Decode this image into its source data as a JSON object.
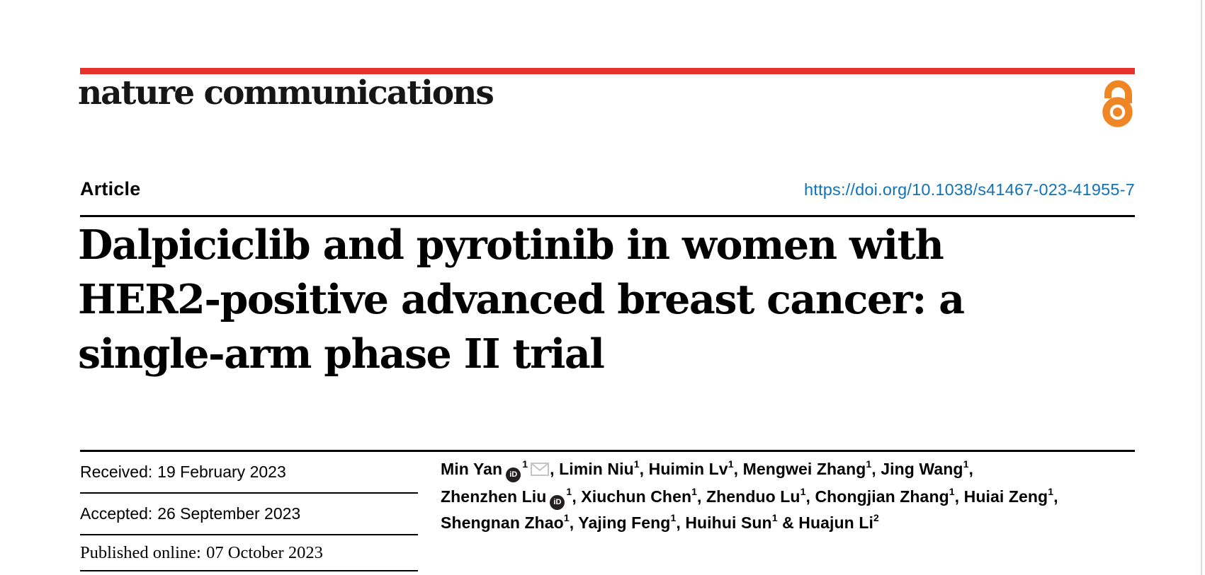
{
  "journal": {
    "wordmark": "nature communications",
    "open_access_icon": "open-access-padlock"
  },
  "article": {
    "type_label": "Article",
    "doi": "https://doi.org/10.1038/s41467-023-41955-7",
    "title": "Dalpiciclib and pyrotinib in women with HER2-positive advanced breast cancer: a single-arm phase II trial",
    "title_lines": [
      "Dalpiciclib and pyrotinib in women with",
      "HER2-positive advanced breast cancer: a",
      "single-arm phase II trial"
    ]
  },
  "history": [
    {
      "label": "Received:",
      "date": "19 February 2023"
    },
    {
      "label": "Accepted:",
      "date": "26 September 2023"
    },
    {
      "label": "Published online:",
      "date": "07 October 2023"
    }
  ],
  "authors": {
    "lines": [
      [
        {
          "name": "Min Yan",
          "orcid": true,
          "sup": "1",
          "email": true,
          "sep": ", "
        },
        {
          "name": "Limin Niu",
          "sup": "1",
          "sep": ", "
        },
        {
          "name": "Huimin Lv",
          "sup": "1",
          "sep": ", "
        },
        {
          "name": "Mengwei Zhang",
          "sup": "1",
          "sep": ", "
        },
        {
          "name": "Jing Wang",
          "sup": "1",
          "sep": ","
        }
      ],
      [
        {
          "name": "Zhenzhen Liu",
          "orcid": true,
          "sup": "1",
          "sep": ", "
        },
        {
          "name": "Xiuchun Chen",
          "sup": "1",
          "sep": ", "
        },
        {
          "name": "Zhenduo Lu",
          "sup": "1",
          "sep": ", "
        },
        {
          "name": "Chongjian Zhang",
          "sup": "1",
          "sep": ", "
        },
        {
          "name": "Huiai Zeng",
          "sup": "1",
          "sep": ","
        }
      ],
      [
        {
          "name": "Shengnan Zhao",
          "sup": "1",
          "sep": ", "
        },
        {
          "name": "Yajing Feng",
          "sup": "1",
          "sep": ", "
        },
        {
          "name": "Huihui Sun",
          "sup": "1",
          "sep": " & "
        },
        {
          "name": "Huajun Li",
          "sup": "2",
          "sep": ""
        }
      ]
    ]
  },
  "colors": {
    "brand_red": "#e5332b",
    "open_access_orange": "#ef8626",
    "link_blue": "#1173b5"
  }
}
